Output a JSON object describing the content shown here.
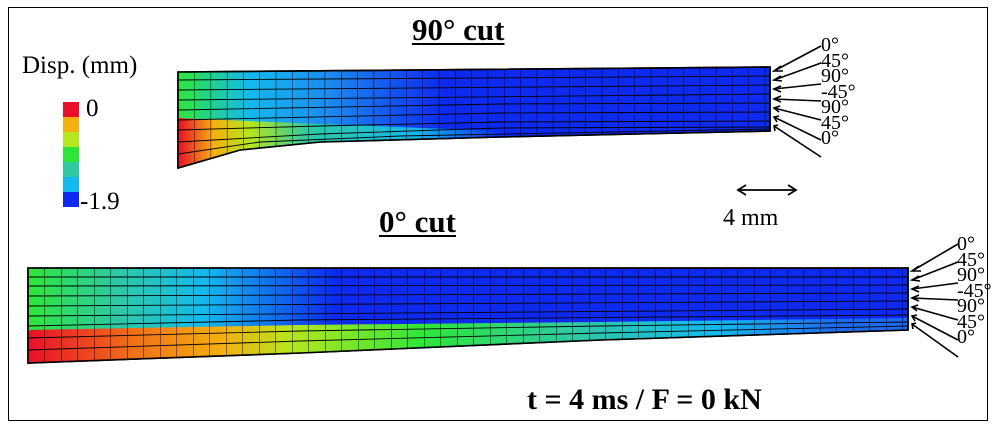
{
  "legend": {
    "title": "Disp. (mm)",
    "max_label": "0",
    "min_label": "-1.9",
    "colors": [
      "#e8102a",
      "#f3b00e",
      "#b5e61e",
      "#2ee63a",
      "#2ec9a3",
      "#14b9ee",
      "#0d2aee"
    ]
  },
  "top_model": {
    "title": "90° cut",
    "layup": [
      "0°",
      "45°",
      "90°",
      "-45°",
      "90°",
      "45°",
      "0°"
    ]
  },
  "bottom_model": {
    "title": "0° cut",
    "layup": [
      "0°",
      "45°",
      "90°",
      "-45°",
      "90°",
      "45°",
      "0°"
    ]
  },
  "scale_bar": {
    "label": "4 mm"
  },
  "caption": "t = 4 ms / F = 0 kN"
}
